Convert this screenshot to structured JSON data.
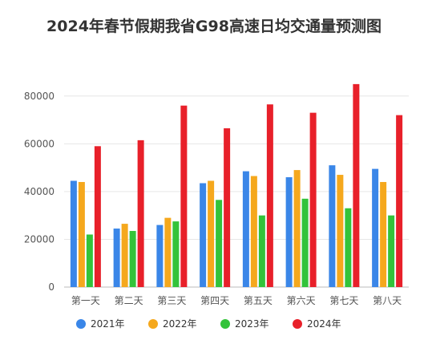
{
  "chart_data": {
    "type": "bar",
    "title": "2024年春节假期我省G98高速日均交通量预测图",
    "categories": [
      "第一天",
      "第二天",
      "第三天",
      "第四天",
      "第五天",
      "第六天",
      "第七天",
      "第八天"
    ],
    "series": [
      {
        "name": "2021年",
        "color": "#3a86e8",
        "values": [
          44500,
          24500,
          26000,
          43500,
          48500,
          46000,
          51000,
          49500
        ]
      },
      {
        "name": "2022年",
        "color": "#f5a81d",
        "values": [
          44000,
          26500,
          29000,
          44500,
          46500,
          49000,
          47000,
          44000
        ]
      },
      {
        "name": "2023年",
        "color": "#33c33a",
        "values": [
          22000,
          23500,
          27500,
          36500,
          30000,
          37000,
          33000,
          30000
        ]
      },
      {
        "name": "2024年",
        "color": "#e8202a",
        "values": [
          59000,
          61500,
          76000,
          66500,
          76500,
          73000,
          85000,
          72000
        ]
      }
    ],
    "yticks": [
      0,
      20000,
      40000,
      60000,
      80000
    ],
    "ylim": [
      0,
      90000
    ],
    "xlabel": "",
    "ylabel": "",
    "grid": true,
    "legend_position": "bottom"
  }
}
